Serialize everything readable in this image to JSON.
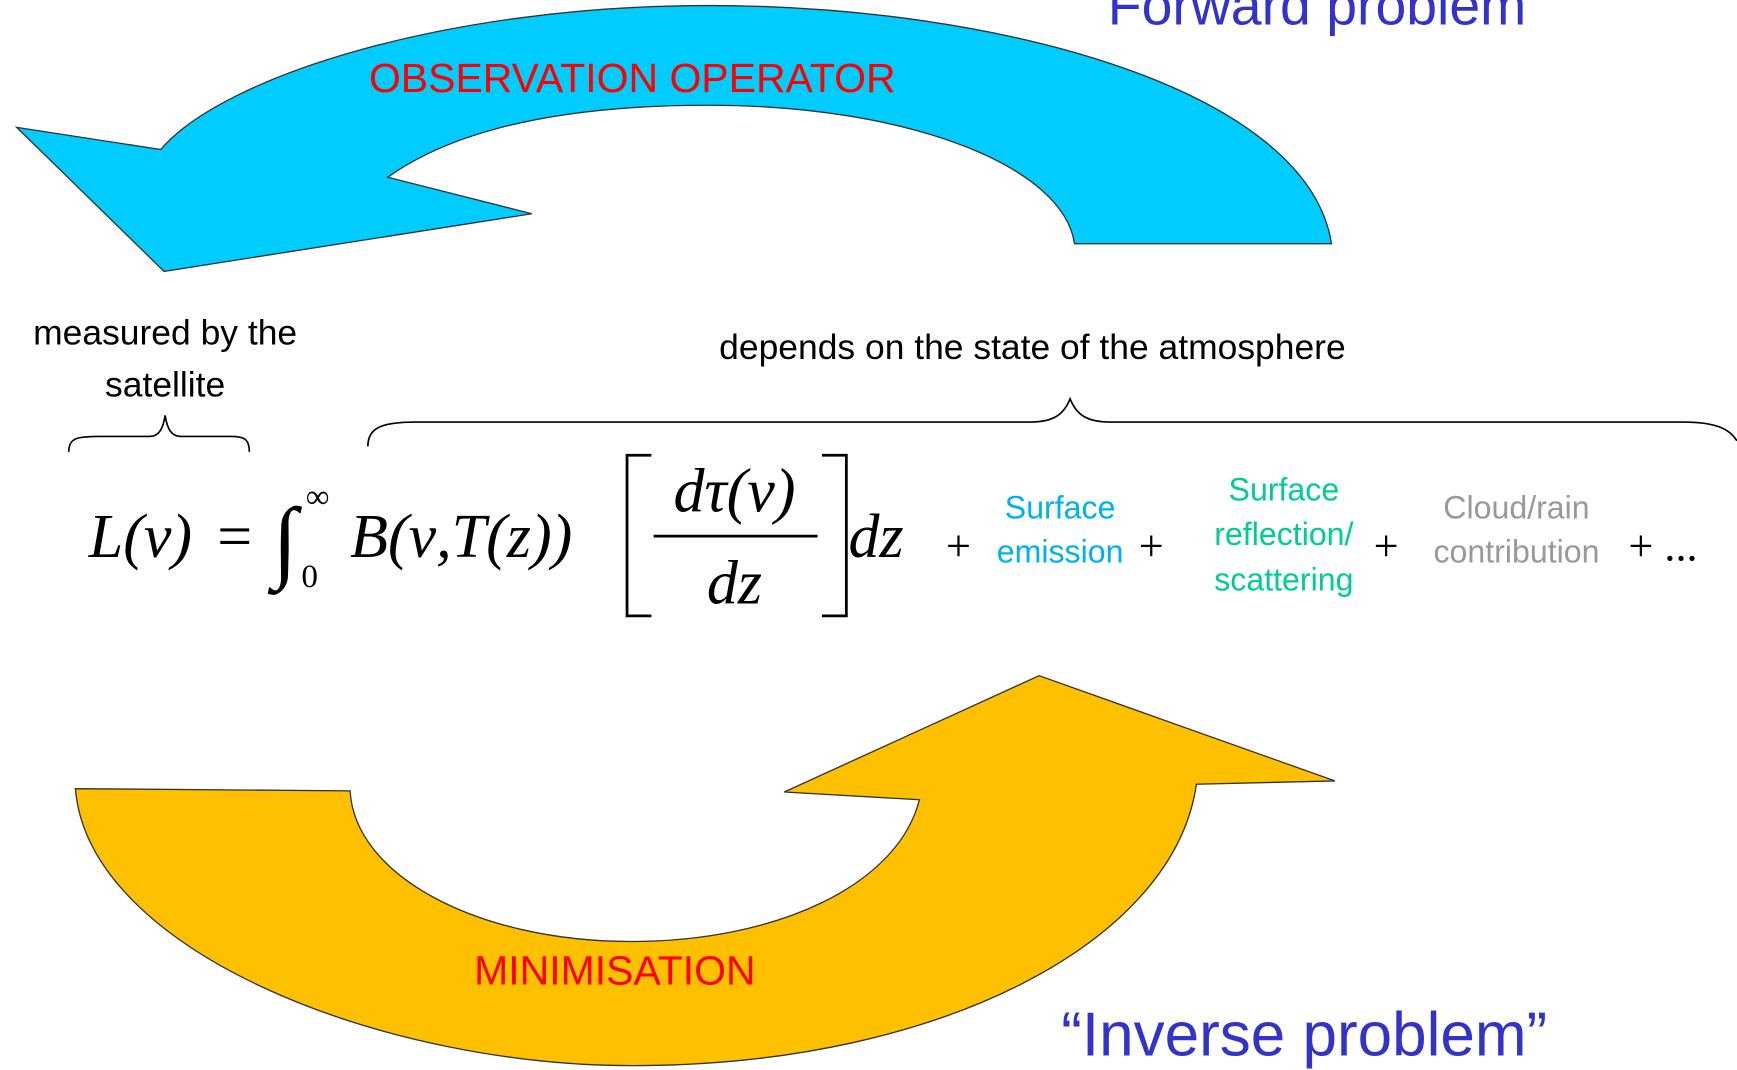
{
  "forward_problem": "Forward problem",
  "observation_operator": "OBSERVATION OPERATOR",
  "measured": [
    "measured by the",
    "satellite"
  ],
  "depends": "depends on the state of the atmosphere",
  "equation": {
    "lhs": "L(ν)",
    "equals": "=",
    "integral": "∫",
    "upper": "∞",
    "lower": "0",
    "planck": "B(ν,T(z))",
    "numerator": "dτ(ν)",
    "denominator": "dz",
    "differential": "dz"
  },
  "operators": [
    "+",
    "+",
    "+",
    "+ ..."
  ],
  "terms": {
    "surface_emission": [
      "Surface",
      "emission"
    ],
    "surface_reflection": [
      "Surface",
      "reflection/",
      "scattering"
    ],
    "cloud_rain": [
      "Cloud/rain",
      "contribution"
    ]
  },
  "minimisation": "MINIMISATION",
  "inverse_problem": "“Inverse problem”"
}
